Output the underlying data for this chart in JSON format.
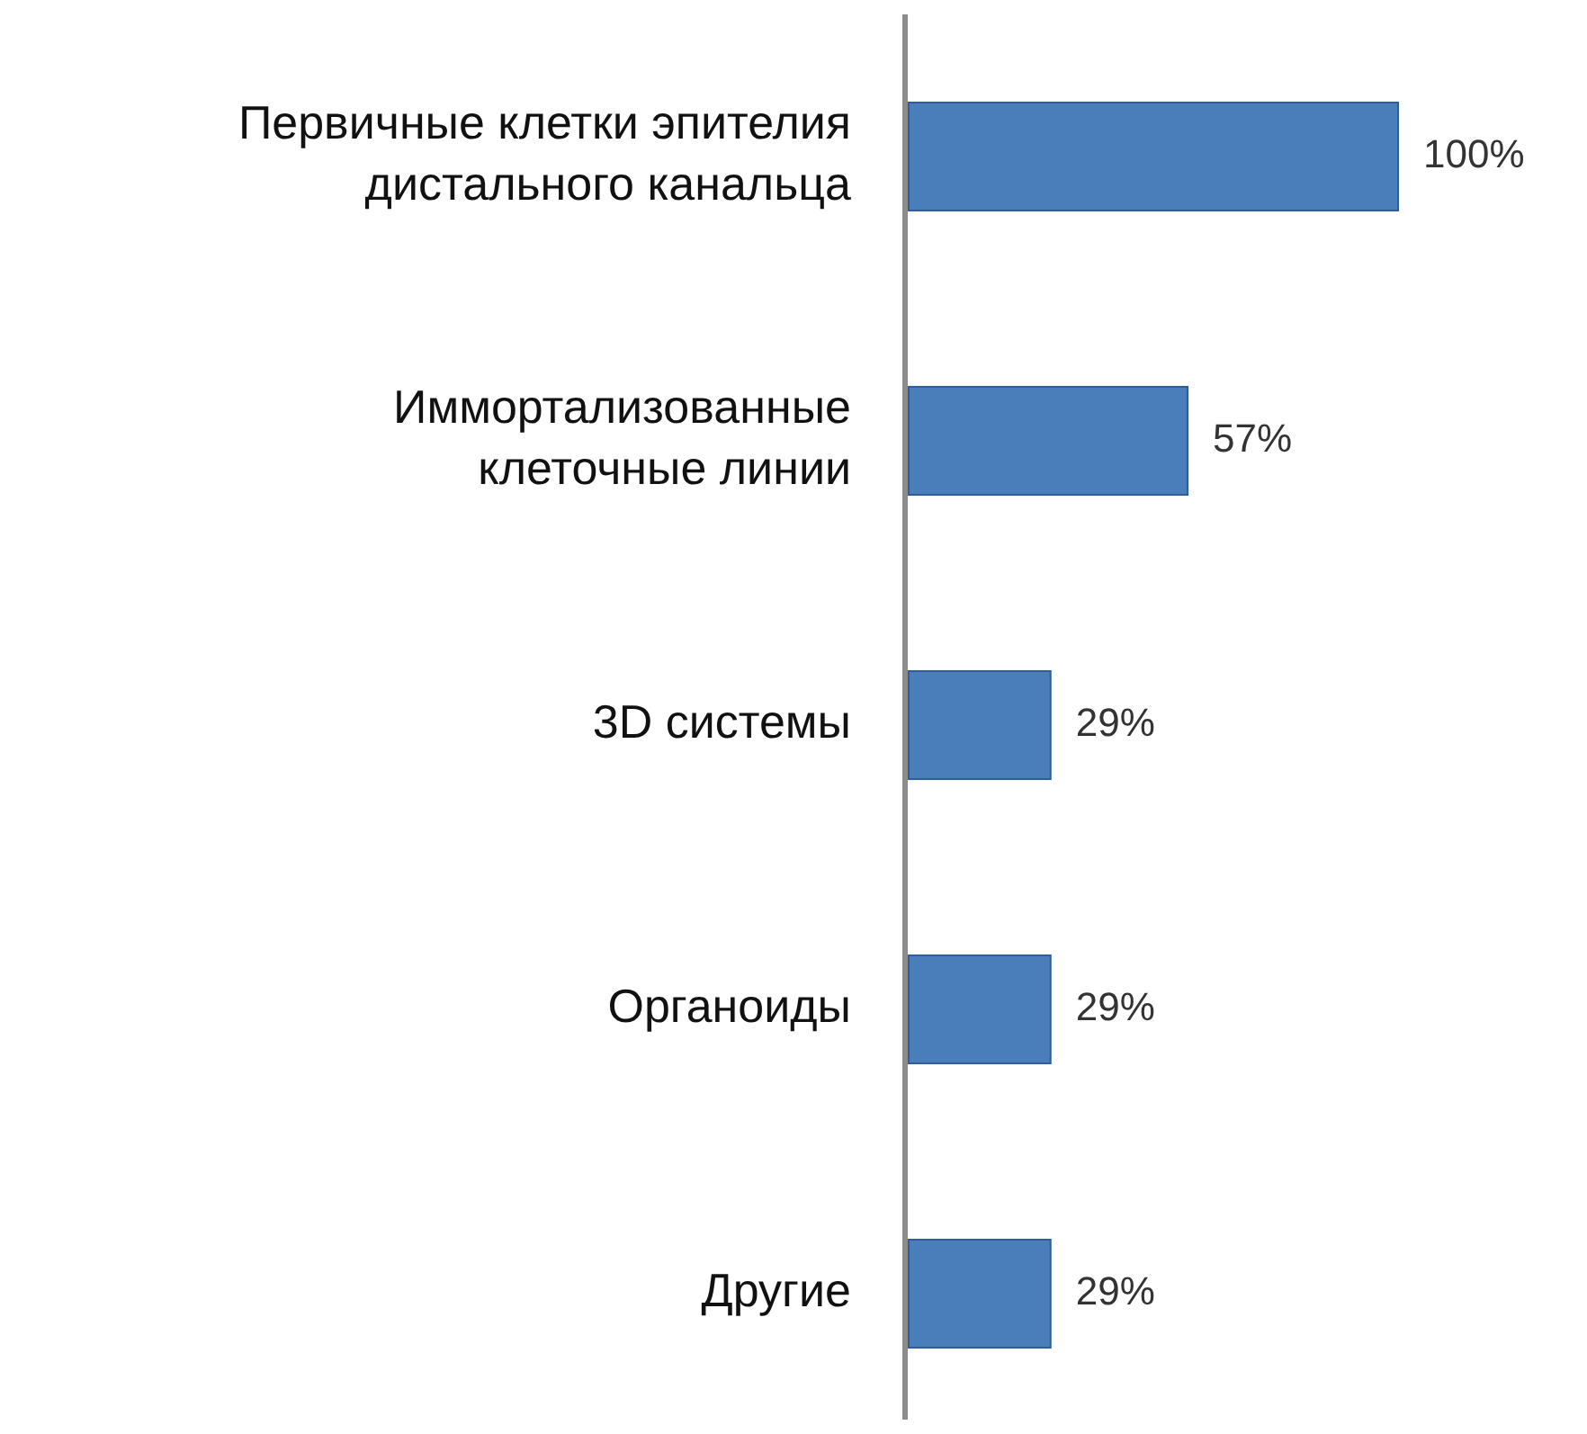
{
  "chart_data": {
    "type": "bar",
    "orientation": "horizontal",
    "categories": [
      "Первичные клетки эпителия дистального канальца",
      "Иммортализованные клеточные линии",
      "3D системы",
      "Органоиды",
      "Другие"
    ],
    "values": [
      100,
      57,
      29,
      29,
      29
    ],
    "value_labels": [
      "100%",
      "57%",
      "29%",
      "29%",
      "29%"
    ],
    "color": "#4a7ebb"
  }
}
